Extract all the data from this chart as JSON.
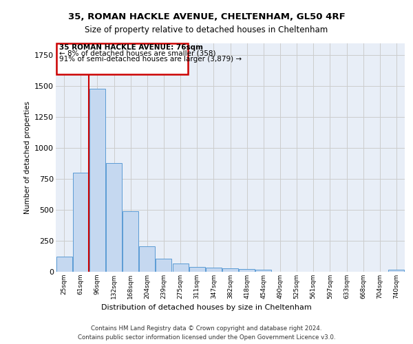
{
  "title_line1": "35, ROMAN HACKLE AVENUE, CHELTENHAM, GL50 4RF",
  "title_line2": "Size of property relative to detached houses in Cheltenham",
  "xlabel": "Distribution of detached houses by size in Cheltenham",
  "ylabel": "Number of detached properties",
  "categories": [
    "25sqm",
    "61sqm",
    "96sqm",
    "132sqm",
    "168sqm",
    "204sqm",
    "239sqm",
    "275sqm",
    "311sqm",
    "347sqm",
    "382sqm",
    "418sqm",
    "454sqm",
    "490sqm",
    "525sqm",
    "561sqm",
    "597sqm",
    "633sqm",
    "668sqm",
    "704sqm",
    "740sqm"
  ],
  "values": [
    125,
    800,
    1480,
    880,
    490,
    205,
    105,
    65,
    40,
    35,
    27,
    22,
    15,
    0,
    0,
    0,
    0,
    0,
    0,
    0,
    15
  ],
  "bar_color": "#c5d8f0",
  "bar_edgecolor": "#5b9bd5",
  "grid_color": "#cccccc",
  "annotation_text_line1": "35 ROMAN HACKLE AVENUE: 76sqm",
  "annotation_text_line2": "← 8% of detached houses are smaller (358)",
  "annotation_text_line3": "91% of semi-detached houses are larger (3,879) →",
  "vline_color": "#cc0000",
  "footnote_line1": "Contains HM Land Registry data © Crown copyright and database right 2024.",
  "footnote_line2": "Contains public sector information licensed under the Open Government Licence v3.0.",
  "ylim": [
    0,
    1850
  ],
  "background_color": "#e8eef7"
}
